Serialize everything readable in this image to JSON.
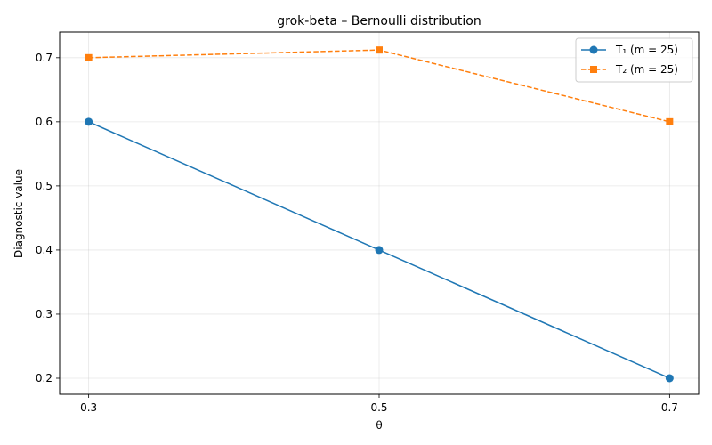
{
  "chart_data": {
    "type": "line",
    "title": "grok-beta – Bernoulli distribution",
    "xlabel": "θ",
    "ylabel": "Diagnostic value",
    "x": [
      0.3,
      0.5,
      0.7
    ],
    "x_tick_labels": [
      "0.3",
      "0.5",
      "0.7"
    ],
    "xlim": [
      0.28,
      0.72
    ],
    "ylim": [
      0.175,
      0.74
    ],
    "y_ticks": [
      0.2,
      0.3,
      0.4,
      0.5,
      0.6,
      0.7
    ],
    "y_tick_labels": [
      "0.2",
      "0.3",
      "0.4",
      "0.5",
      "0.6",
      "0.7"
    ],
    "grid": true,
    "legend_position": "top-right",
    "series": [
      {
        "name": "T₁ (m = 25)",
        "values": [
          0.6,
          0.4,
          0.2
        ],
        "color": "#1f77b4",
        "marker": "circle",
        "line_style": "solid"
      },
      {
        "name": "T₂ (m = 25)",
        "values": [
          0.7,
          0.712,
          0.6
        ],
        "color": "#ff7f0e",
        "marker": "square",
        "line_style": "dashed"
      }
    ]
  }
}
